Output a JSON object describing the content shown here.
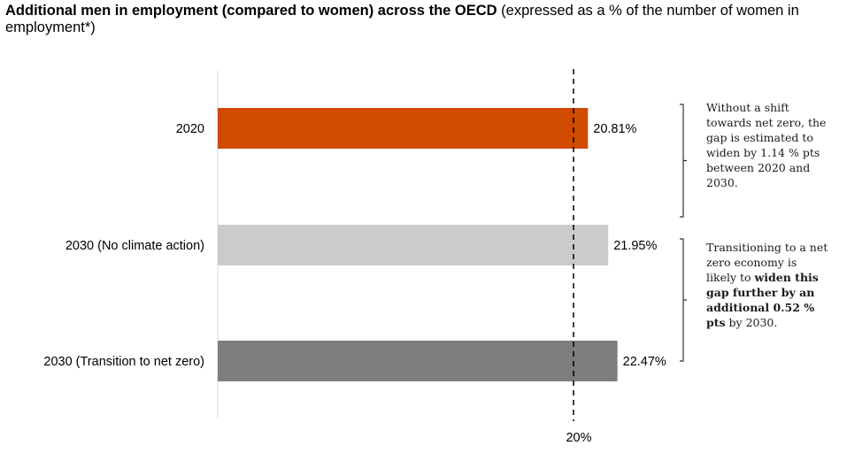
{
  "title": {
    "bold": "Additional men in employment (compared to women) across the OECD",
    "normal": " (expressed as a % of the number of women in employment*)"
  },
  "chart_data": {
    "type": "bar",
    "orientation": "horizontal",
    "categories": [
      "2020",
      "2030 (No climate action)",
      "2030 (Transition to net zero)"
    ],
    "values": [
      20.81,
      21.95,
      22.47
    ],
    "value_labels": [
      "20.81%",
      "21.95%",
      "22.47%"
    ],
    "colors": [
      "#d04a02",
      "#cbcbcb",
      "#7d7d7d"
    ],
    "reference_line": {
      "value": 20,
      "label": "20%"
    },
    "grid": false,
    "xlabel": "",
    "ylabel": ""
  },
  "annotations": [
    {
      "parts": [
        {
          "text": "Without a shift towards net zero, the gap is estimated to widen by 1.14 % pts between 2020 and 2030.",
          "bold": false
        }
      ]
    },
    {
      "parts": [
        {
          "text": "Transitioning to a net zero economy is likely to ",
          "bold": false
        },
        {
          "text": "widen this gap further by an additional 0.52 % pts",
          "bold": true
        },
        {
          "text": " by 2030.",
          "bold": false
        }
      ]
    }
  ]
}
